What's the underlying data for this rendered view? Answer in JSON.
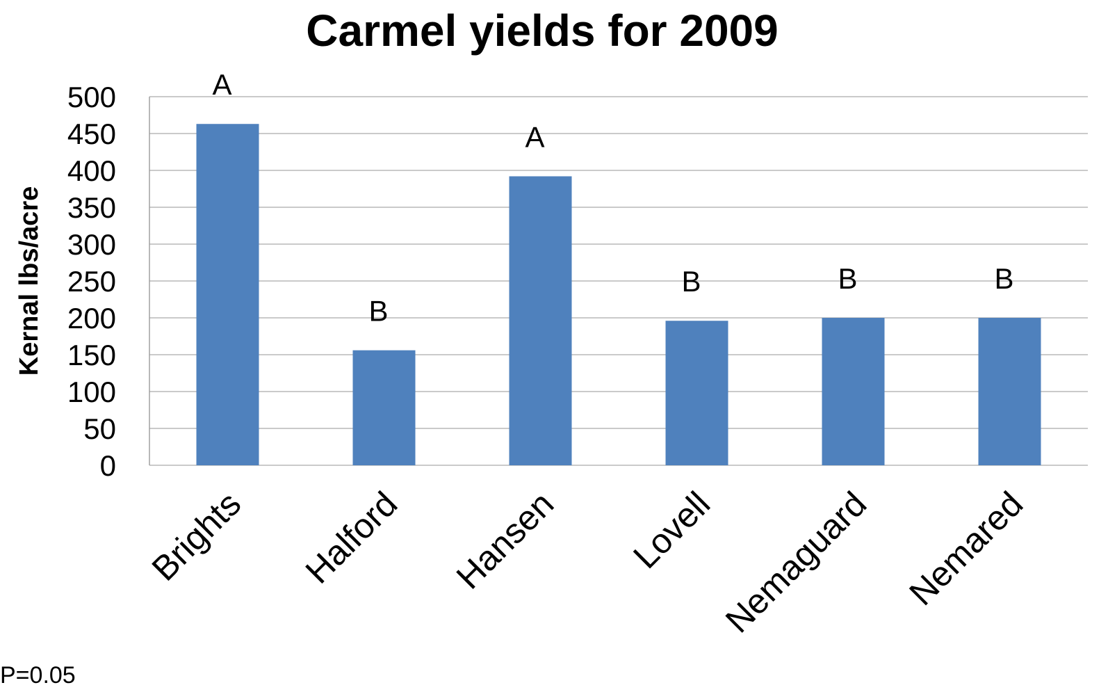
{
  "chart_data": {
    "type": "bar",
    "title": "Carmel yields for 2009",
    "y_label": "Kernal lbs/acre",
    "categories": [
      "Brights",
      "Halford",
      "Hansen",
      "Lovell",
      "Nemaguard",
      "Nemared"
    ],
    "values": [
      463,
      156,
      392,
      196,
      200,
      200
    ],
    "annotations": [
      "A",
      "B",
      "A",
      "B",
      "B",
      "B"
    ],
    "color": "#4f81bd",
    "ylim": [
      0,
      500
    ],
    "yticks": [
      0,
      50,
      100,
      150,
      200,
      250,
      300,
      350,
      400,
      450,
      500
    ],
    "grid": true,
    "footnote": "P=0.05"
  }
}
